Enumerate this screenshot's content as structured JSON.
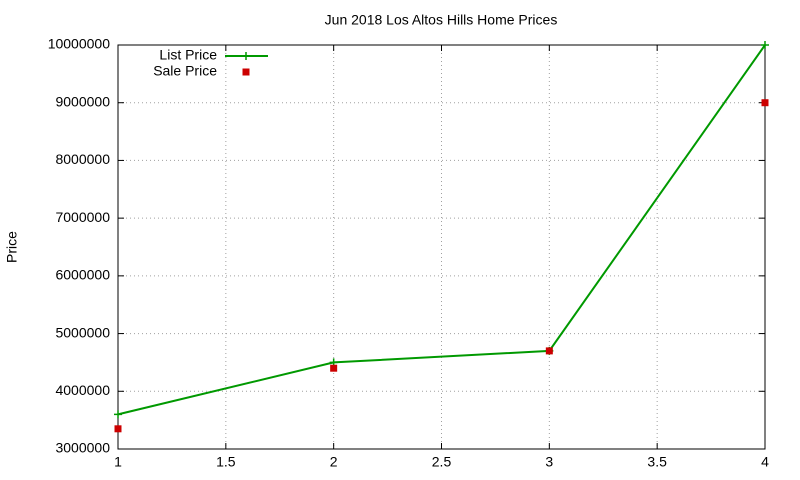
{
  "chart_data": {
    "type": "line",
    "title": "Jun 2018 Los Altos Hills Home Prices",
    "y_label": "Price",
    "x": [
      1,
      2,
      3,
      4
    ],
    "series": [
      {
        "name": "List Price",
        "color": "#009900",
        "style": "linespoints",
        "marker": "plus",
        "values": [
          3600000,
          4500000,
          4700000,
          10000000
        ]
      },
      {
        "name": "Sale Price",
        "color": "#cc0000",
        "style": "points",
        "marker": "square",
        "values": [
          3350000,
          4400000,
          4700000,
          9000000
        ]
      }
    ],
    "xlim": [
      1,
      4
    ],
    "xticks": [
      1,
      1.5,
      2,
      2.5,
      3,
      3.5,
      4
    ],
    "ylim": [
      3000000,
      10000000
    ],
    "yticks": [
      3000000,
      4000000,
      5000000,
      6000000,
      7000000,
      8000000,
      9000000,
      10000000
    ],
    "grid": true,
    "legend": "top-left"
  }
}
